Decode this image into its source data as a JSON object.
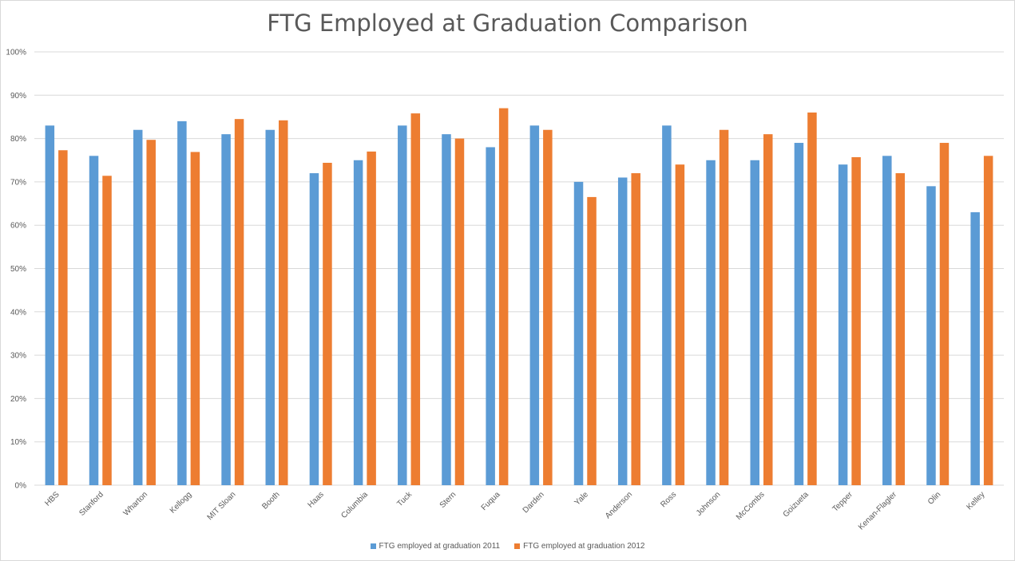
{
  "chart_data": {
    "type": "bar",
    "title": "FTG Employed at Graduation Comparison",
    "categories": [
      "HBS",
      "Stanford",
      "Wharton",
      "Kellogg",
      "MIT Sloan",
      "Booth",
      "Haas",
      "Columbia",
      "Tuck",
      "Stern",
      "Fuqua",
      "Darden",
      "Yale",
      "Anderson",
      "Ross",
      "Johnson",
      "McCombs",
      "Goizueta",
      "Tepper",
      "Kenan-Flagler",
      "Olin",
      "Kelley"
    ],
    "series": [
      {
        "name": "FTG employed at graduation 2011",
        "color": "#5b9bd5",
        "values": [
          83,
          76,
          82,
          84,
          81,
          82,
          72,
          75,
          83,
          81,
          78,
          83,
          70,
          71,
          83,
          75,
          75,
          79,
          74,
          76,
          69,
          63
        ]
      },
      {
        "name": "FTG employed at graduation 2012",
        "color": "#ed7d31",
        "values": [
          77.3,
          71.4,
          79.7,
          76.9,
          84.5,
          84.2,
          74.4,
          77,
          85.8,
          80,
          87,
          82,
          66.5,
          72,
          74,
          82,
          81,
          86,
          75.7,
          72,
          79,
          76
        ]
      }
    ],
    "yticks": [
      "0%",
      "10%",
      "20%",
      "30%",
      "40%",
      "50%",
      "60%",
      "70%",
      "80%",
      "90%",
      "100%"
    ],
    "ylim": [
      0,
      100
    ],
    "grid": true,
    "legend_position": "bottom"
  }
}
